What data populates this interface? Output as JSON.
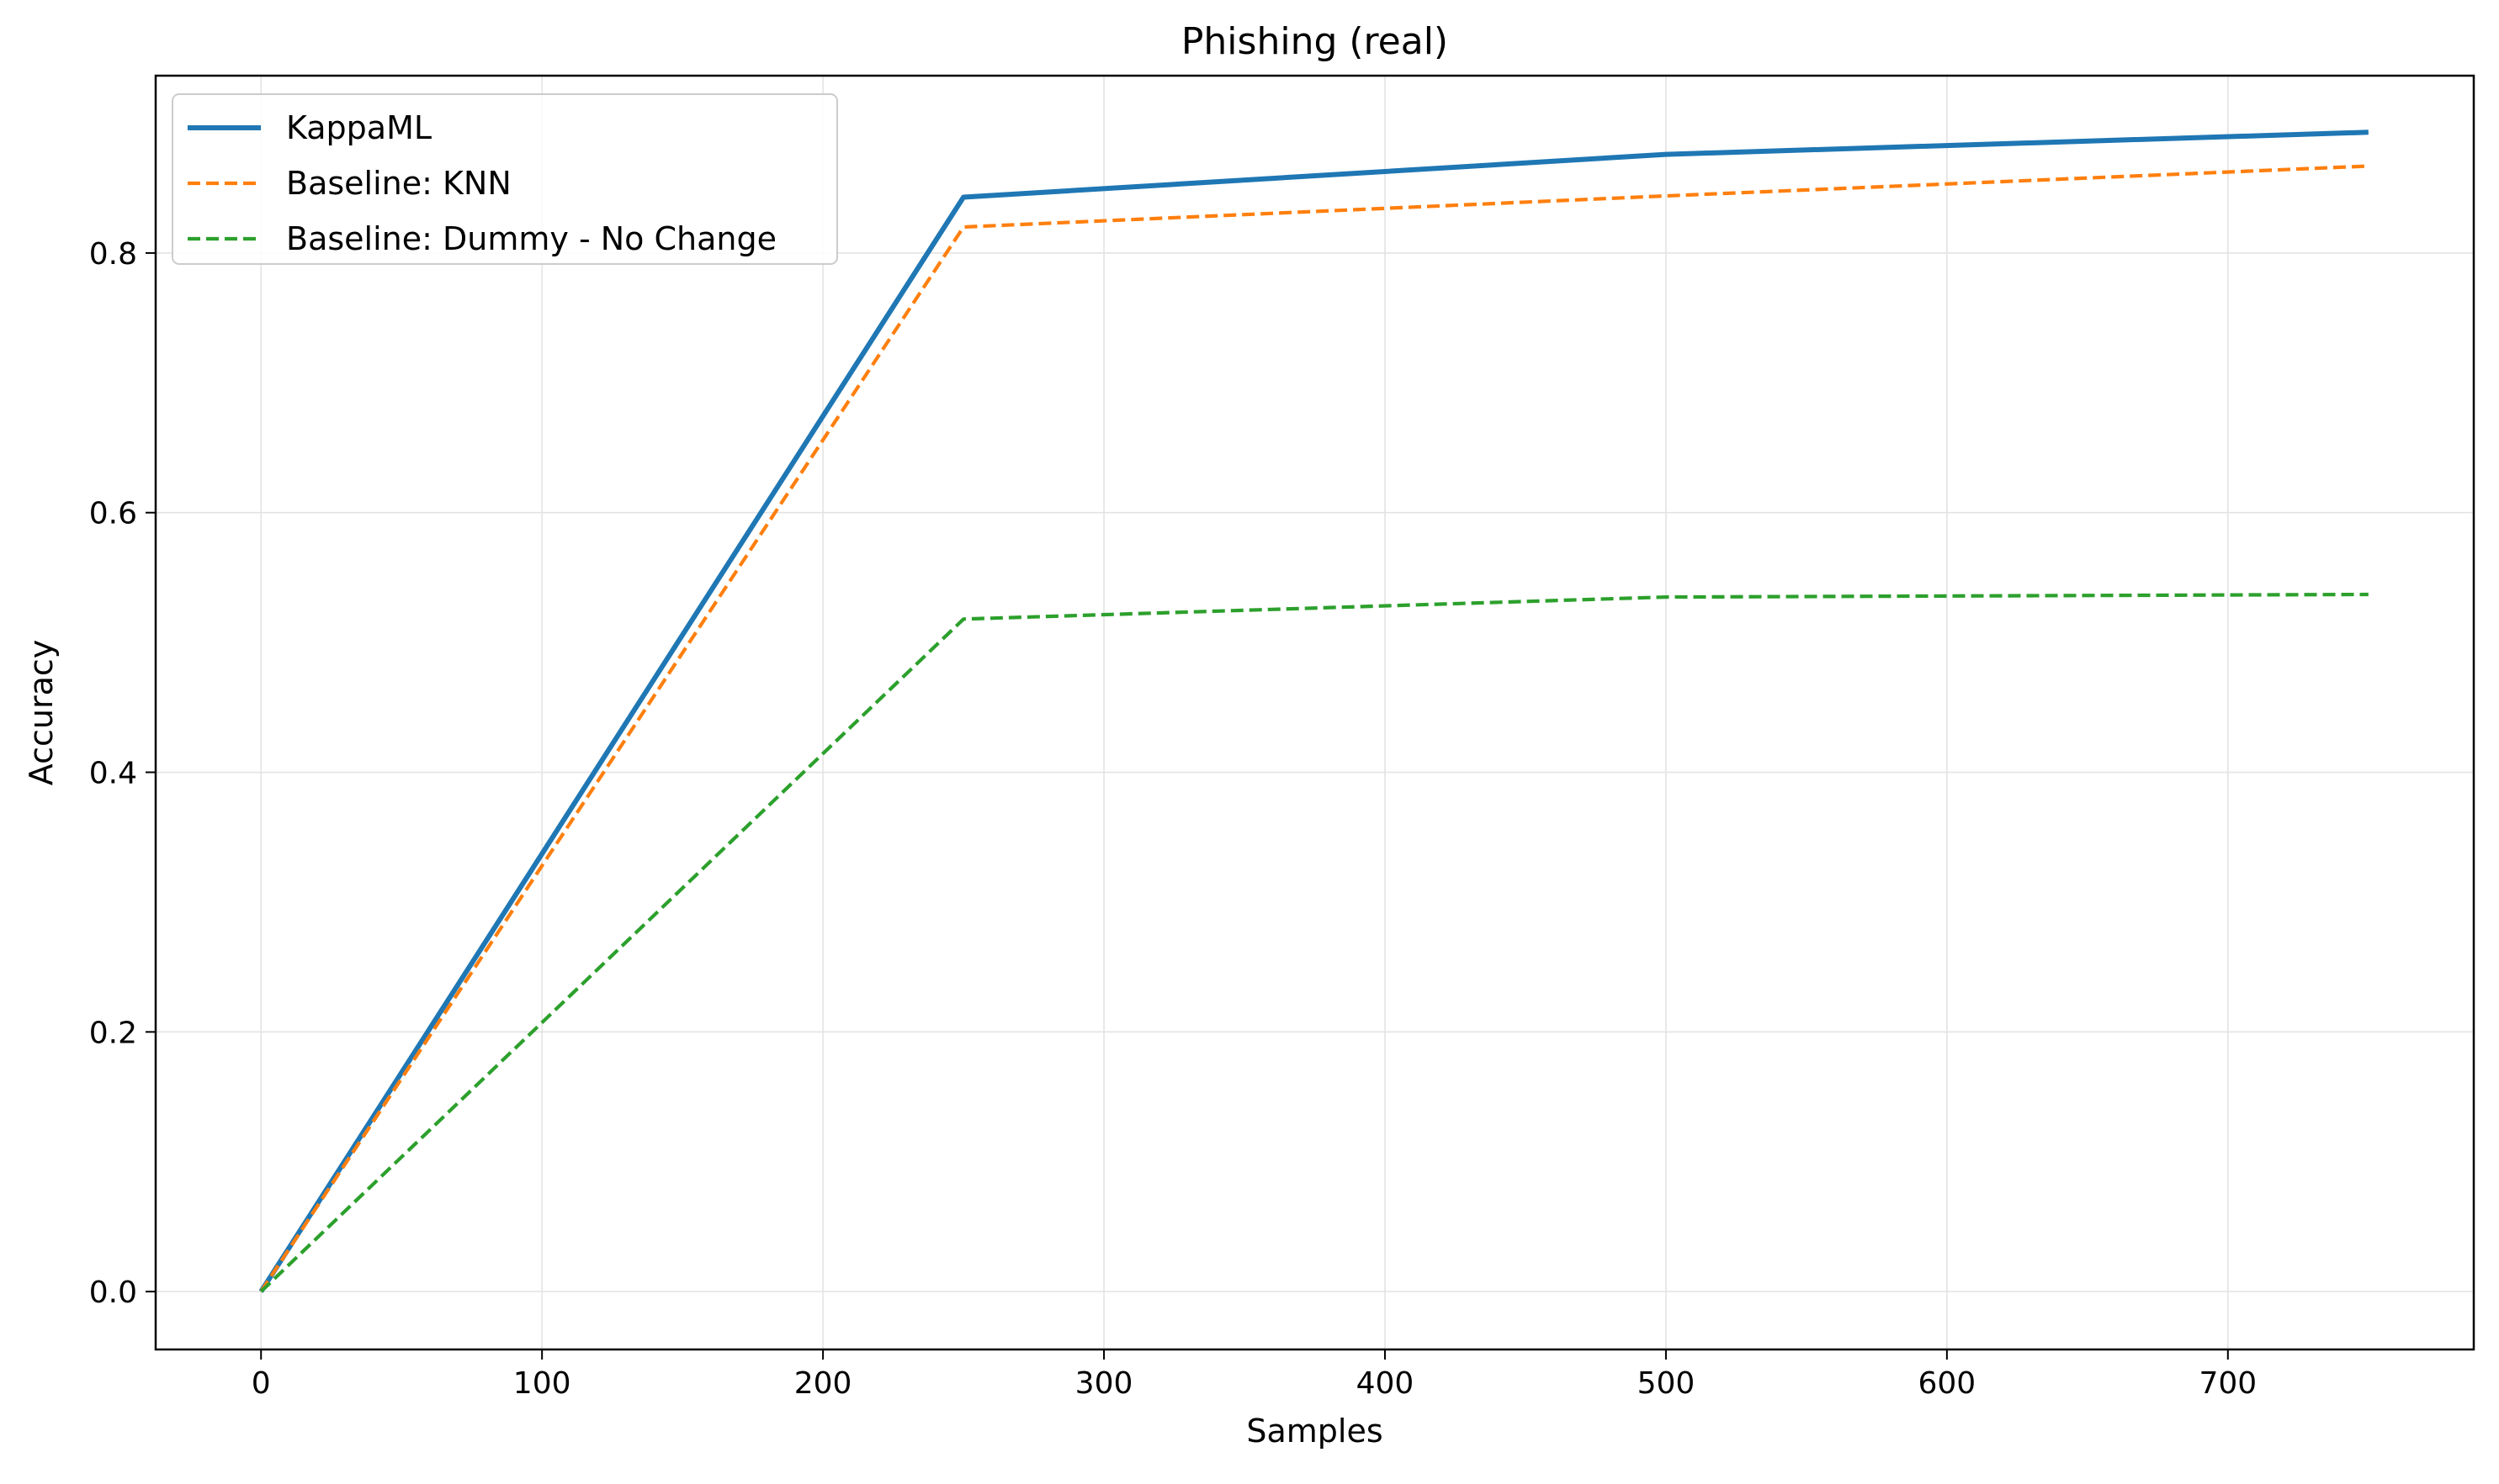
{
  "chart_data": {
    "type": "line",
    "title": "Phishing (real)",
    "xlabel": "Samples",
    "ylabel": "Accuracy",
    "xlim": [
      -37.5,
      787.5
    ],
    "ylim": [
      -0.0446,
      0.9366
    ],
    "xticks": [
      0,
      100,
      200,
      300,
      400,
      500,
      600,
      700
    ],
    "yticks": [
      0.0,
      0.2,
      0.4,
      0.6,
      0.8
    ],
    "x_tick_labels": [
      "0",
      "100",
      "200",
      "300",
      "400",
      "500",
      "600",
      "700"
    ],
    "y_tick_labels": [
      "0.0",
      "0.2",
      "0.4",
      "0.6",
      "0.8"
    ],
    "grid": true,
    "legend_position": "top-left",
    "series": [
      {
        "name": "KappaML",
        "color": "#1f77b4",
        "style": "solid",
        "x": [
          0,
          250,
          500,
          750
        ],
        "y": [
          0.0,
          0.843,
          0.876,
          0.893
        ]
      },
      {
        "name": "Baseline: KNN",
        "color": "#ff7f0e",
        "style": "dashed",
        "x": [
          0,
          250,
          500,
          750
        ],
        "y": [
          0.0,
          0.82,
          0.844,
          0.867
        ]
      },
      {
        "name": "Baseline: Dummy - No Change",
        "color": "#2ca02c",
        "style": "dashed",
        "x": [
          0,
          250,
          500,
          750
        ],
        "y": [
          0.0,
          0.518,
          0.535,
          0.537
        ]
      }
    ]
  }
}
